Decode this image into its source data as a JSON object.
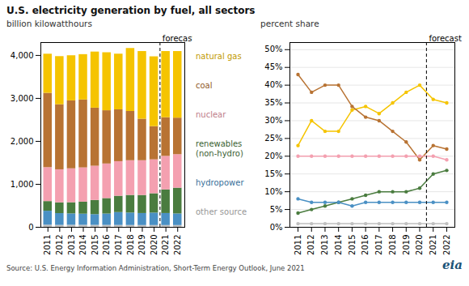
{
  "chart_data": [
    {
      "type": "bar",
      "stacked": true,
      "legend": "right",
      "title": "U.S. electricity generation by fuel, all sectors",
      "subtitle": "billion kilowatthours",
      "caption": "Source: U.S. Energy Information Administration, Short-Term Energy Outlook, June 2021",
      "logo": "eia",
      "x": [
        2011,
        2012,
        2013,
        2014,
        2015,
        2016,
        2017,
        2018,
        2019,
        2020,
        2021,
        2022
      ],
      "xlim": [
        2010.4,
        2022.6
      ],
      "xticks": [
        2011,
        2012,
        2013,
        2014,
        2015,
        2016,
        2017,
        2018,
        2019,
        2020,
        2021,
        2022
      ],
      "ylim": [
        0,
        4300
      ],
      "yticks": [
        0,
        {
          "value": 1000,
          "label": "1,000"
        },
        {
          "value": 2000,
          "label": "2,000"
        },
        {
          "value": 3000,
          "label": "3,000"
        },
        {
          "value": 4000,
          "label": "4,000"
        }
      ],
      "annotations": [
        {
          "x": 2020.5,
          "text": "forecast"
        }
      ],
      "series": [
        {
          "name": "other source",
          "color": "#c0c0c0",
          "values": [
            50,
            45,
            48,
            47,
            46,
            45,
            44,
            43,
            42,
            42,
            42,
            42
          ]
        },
        {
          "name": "hydropower",
          "color": "#4a90c4",
          "values": [
            325,
            275,
            265,
            260,
            250,
            265,
            300,
            290,
            280,
            290,
            280,
            270
          ]
        },
        {
          "name": "renewables\n(non-hydro)",
          "color": "#4a7c3f",
          "values": [
            225,
            250,
            260,
            280,
            330,
            360,
            380,
            410,
            420,
            450,
            550,
            600
          ]
        },
        {
          "name": "nuclear",
          "color": "#f4a0b0",
          "values": [
            790,
            770,
            790,
            797,
            797,
            805,
            805,
            808,
            809,
            790,
            780,
            780
          ]
        },
        {
          "name": "coal",
          "color": "#b87333",
          "values": [
            1730,
            1514,
            1581,
            1581,
            1352,
            1239,
            1206,
            1146,
            966,
            773,
            900,
            850
          ]
        },
        {
          "name": "natural gas",
          "color": "#f5c400",
          "values": [
            910,
            1120,
            1050,
            1055,
            1305,
            1350,
            1296,
            1466,
            1575,
            1624,
            1540,
            1550
          ]
        }
      ]
    },
    {
      "type": "line",
      "marker": "circle",
      "grid": true,
      "ylabel": "percent share",
      "x": [
        2011,
        2012,
        2013,
        2014,
        2015,
        2016,
        2017,
        2018,
        2019,
        2020,
        2021,
        2022
      ],
      "xlim": [
        2010.4,
        2022.6
      ],
      "xticks": [
        2011,
        2012,
        2013,
        2014,
        2015,
        2016,
        2017,
        2018,
        2019,
        2020,
        2021,
        2022
      ],
      "ylim": [
        0,
        52
      ],
      "yticks": [
        {
          "value": 0,
          "label": "0%"
        },
        {
          "value": 5,
          "label": "5%"
        },
        {
          "value": 10,
          "label": "10%"
        },
        {
          "value": 15,
          "label": "15%"
        },
        {
          "value": 20,
          "label": "20%"
        },
        {
          "value": 25,
          "label": "25%"
        },
        {
          "value": 30,
          "label": "30%"
        },
        {
          "value": 35,
          "label": "35%"
        },
        {
          "value": 40,
          "label": "40%"
        },
        {
          "value": 45,
          "label": "45%"
        },
        {
          "value": 50,
          "label": "50%"
        }
      ],
      "annotations": [
        {
          "x": 2020.5,
          "text": "forecast"
        }
      ],
      "series": [
        {
          "name": "natural gas",
          "color": "#f5c400",
          "values": [
            23,
            30,
            27,
            27,
            33,
            34,
            32,
            35,
            38,
            40,
            36,
            35
          ]
        },
        {
          "name": "coal",
          "color": "#b87333",
          "values": [
            43,
            38,
            40,
            40,
            34,
            31,
            30,
            27,
            24,
            19,
            23,
            22
          ]
        },
        {
          "name": "nuclear",
          "color": "#f4a0b0",
          "values": [
            20,
            20,
            20,
            20,
            20,
            20,
            20,
            20,
            20,
            20,
            20,
            19
          ]
        },
        {
          "name": "renewables\n(non-hydro)",
          "color": "#4a7c3f",
          "values": [
            4,
            5,
            6,
            7,
            8,
            9,
            10,
            10,
            10,
            11,
            15,
            16
          ]
        },
        {
          "name": "hydropower",
          "color": "#4a90c4",
          "values": [
            8,
            7,
            7,
            7,
            6,
            7,
            7,
            7,
            7,
            7,
            7,
            7
          ]
        },
        {
          "name": "other source",
          "color": "#c0c0c0",
          "values": [
            1,
            1,
            1,
            1,
            1,
            1,
            1,
            1,
            1,
            1,
            1,
            1
          ]
        }
      ]
    }
  ]
}
